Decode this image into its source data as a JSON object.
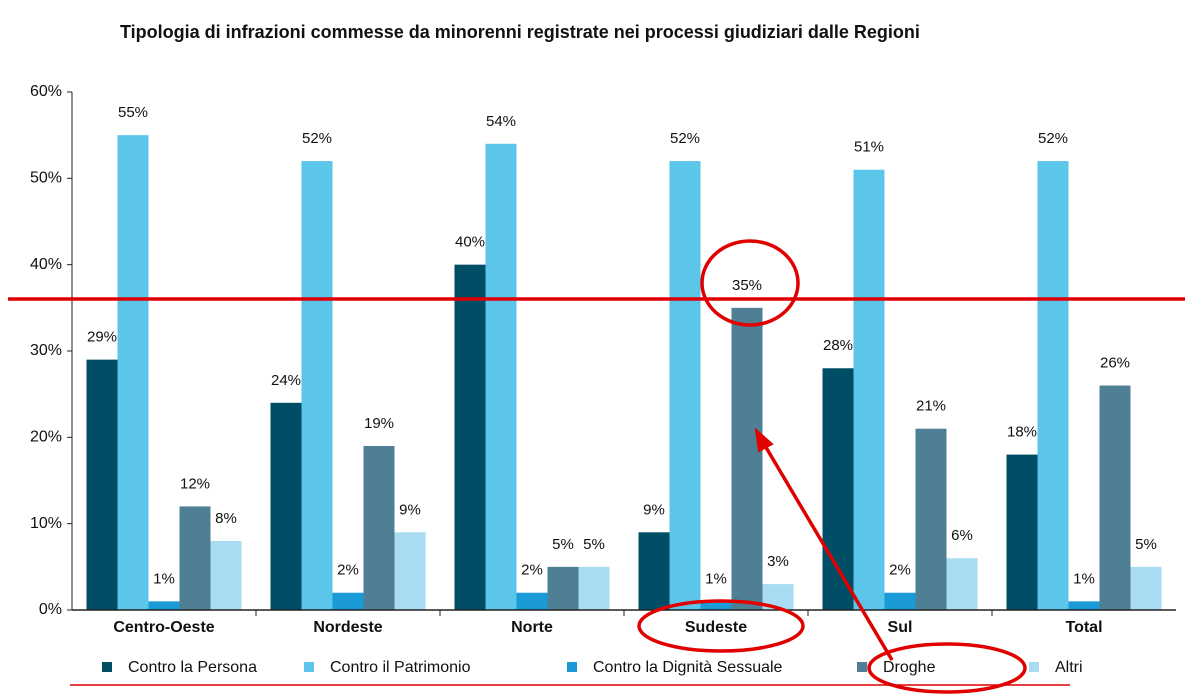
{
  "chart_data": {
    "type": "bar",
    "title": "Tipologia di infrazioni commesse da minorenni registrate nei processi giudiziari dalle Regioni",
    "categories": [
      "Centro-Oeste",
      "Nordeste",
      "Norte",
      "Sudeste",
      "Sul",
      "Total"
    ],
    "series": [
      {
        "name": "Contro la Persona",
        "color": "#004d66",
        "values": [
          29,
          24,
          40,
          9,
          28,
          18
        ],
        "value_labels": [
          "29%",
          "24%",
          "40%",
          "9%",
          "28%",
          "18%"
        ]
      },
      {
        "name": "Contro il Patrimonio",
        "color": "#5bc5ea",
        "values": [
          55,
          52,
          54,
          52,
          51,
          52
        ],
        "value_labels": [
          "55%",
          "52%",
          "54%",
          "52%",
          "51%",
          "52%"
        ]
      },
      {
        "name": "Contro la Dignità Sessuale",
        "color": "#1a9ad6",
        "values": [
          1,
          2,
          2,
          1,
          2,
          1
        ],
        "value_labels": [
          "1%",
          "2%",
          "2%",
          "1%",
          "2%",
          "1%"
        ]
      },
      {
        "name": "Droghe",
        "color": "#4e7f94",
        "values": [
          12,
          19,
          5,
          35,
          21,
          26
        ],
        "value_labels": [
          "12%",
          "19%",
          "5%",
          "35%",
          "21%",
          "26%"
        ]
      },
      {
        "name": "Altri",
        "color": "#a9dcf2",
        "values": [
          8,
          9,
          5,
          3,
          6,
          5
        ],
        "value_labels": [
          "8%",
          "9%",
          "5%",
          "3%",
          "6%",
          "5%"
        ]
      }
    ],
    "ylim": [
      0,
      60
    ],
    "yticks": [
      {
        "value": 0,
        "label": "0%"
      },
      {
        "value": 10,
        "label": "10%"
      },
      {
        "value": 20,
        "label": "20%"
      },
      {
        "value": 30,
        "label": "30%"
      },
      {
        "value": 40,
        "label": "40%"
      },
      {
        "value": 50,
        "label": "50%"
      },
      {
        "value": 60,
        "label": "60%"
      }
    ],
    "legend": "bottom"
  }
}
